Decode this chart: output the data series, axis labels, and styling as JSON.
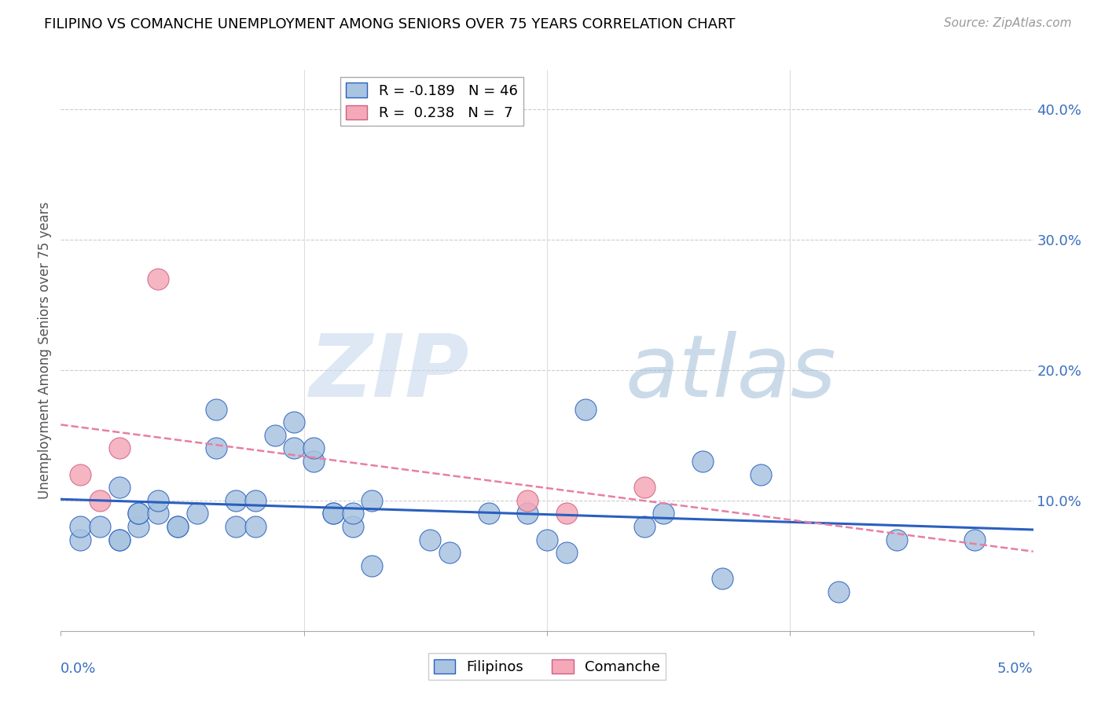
{
  "title": "FILIPINO VS COMANCHE UNEMPLOYMENT AMONG SENIORS OVER 75 YEARS CORRELATION CHART",
  "source": "Source: ZipAtlas.com",
  "ylabel": "Unemployment Among Seniors over 75 years",
  "yticks": [
    0.0,
    0.1,
    0.2,
    0.3,
    0.4
  ],
  "ytick_labels": [
    "",
    "10.0%",
    "20.0%",
    "30.0%",
    "40.0%"
  ],
  "xlim": [
    0.0,
    0.05
  ],
  "ylim": [
    0.0,
    0.43
  ],
  "filipinos_color": "#a8c4e0",
  "comanche_color": "#f4a8b8",
  "filipinos_line_color": "#2a5fbf",
  "comanche_line_color": "#e87fa0",
  "filipinos_x": [
    0.001,
    0.001,
    0.002,
    0.003,
    0.003,
    0.003,
    0.004,
    0.004,
    0.004,
    0.005,
    0.005,
    0.006,
    0.006,
    0.007,
    0.008,
    0.008,
    0.009,
    0.009,
    0.01,
    0.01,
    0.011,
    0.012,
    0.012,
    0.013,
    0.013,
    0.014,
    0.014,
    0.015,
    0.015,
    0.016,
    0.016,
    0.019,
    0.02,
    0.022,
    0.024,
    0.025,
    0.026,
    0.027,
    0.03,
    0.031,
    0.033,
    0.034,
    0.036,
    0.04,
    0.043,
    0.047
  ],
  "filipinos_y": [
    0.07,
    0.08,
    0.08,
    0.07,
    0.07,
    0.11,
    0.08,
    0.09,
    0.09,
    0.09,
    0.1,
    0.08,
    0.08,
    0.09,
    0.17,
    0.14,
    0.1,
    0.08,
    0.08,
    0.1,
    0.15,
    0.14,
    0.16,
    0.13,
    0.14,
    0.09,
    0.09,
    0.08,
    0.09,
    0.05,
    0.1,
    0.07,
    0.06,
    0.09,
    0.09,
    0.07,
    0.06,
    0.17,
    0.08,
    0.09,
    0.13,
    0.04,
    0.12,
    0.03,
    0.07,
    0.07
  ],
  "comanche_x": [
    0.001,
    0.002,
    0.003,
    0.005,
    0.024,
    0.026,
    0.03
  ],
  "comanche_y": [
    0.12,
    0.1,
    0.14,
    0.27,
    0.1,
    0.09,
    0.11
  ]
}
